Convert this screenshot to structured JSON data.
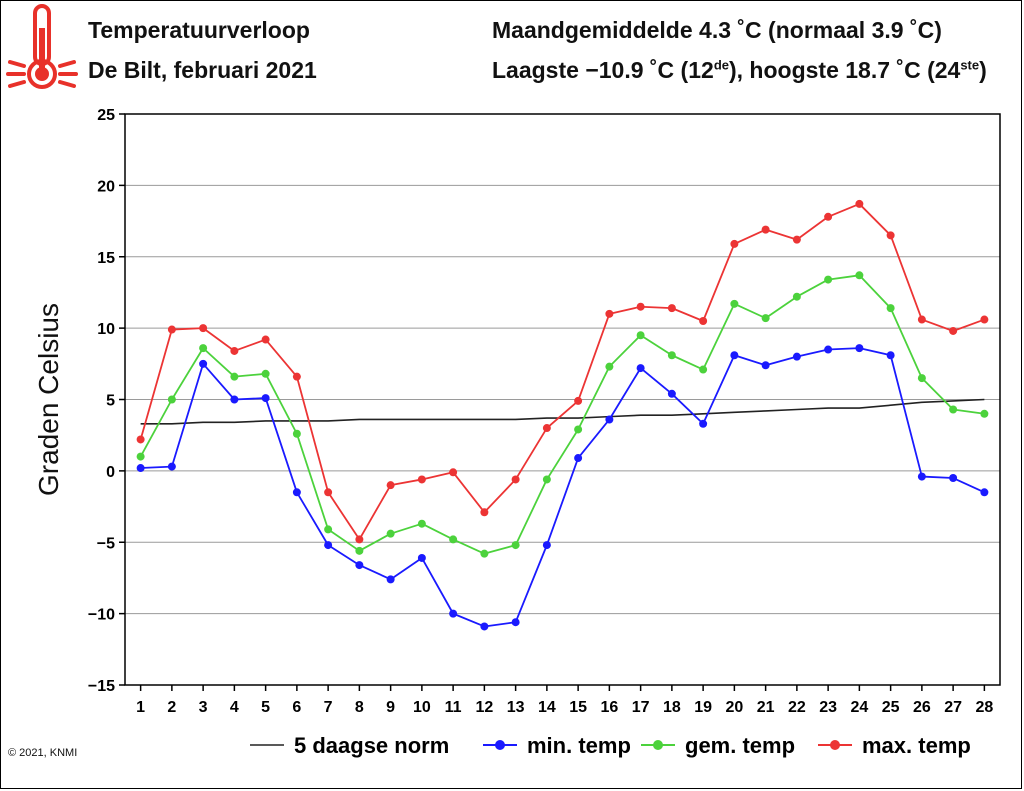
{
  "header": {
    "title": "Temperatuurverloop",
    "subtitle": "De Bilt, februari 2021",
    "stat1_label": "Maandgemiddelde 4.3 ˚C (normaal 3.9 ˚C)",
    "stat2_part1": "Laagste −10.9 ˚C (12",
    "stat2_sup1": "de",
    "stat2_part2": "), hoogste 18.7 ˚C (24",
    "stat2_sup2": "ste",
    "stat2_part3": ")"
  },
  "copyright": "© 2021, KNMI",
  "icons": {
    "logo": "thermometer-icon"
  },
  "colors": {
    "logo": "#e8312a",
    "norm": "#222222",
    "min": "#1a1aff",
    "gem": "#4cd23c",
    "max": "#ec3434"
  },
  "chart_data": {
    "type": "line",
    "title": "Temperatuurverloop",
    "subtitle": "De Bilt, februari 2021",
    "xlabel": "",
    "ylabel": "Graden Celsius",
    "ylim": [
      -15,
      25
    ],
    "yticks": [
      -15,
      -10,
      -5,
      0,
      5,
      10,
      15,
      20,
      25
    ],
    "ytick_labels": [
      "−15",
      "−10",
      "−5",
      "0",
      "5",
      "10",
      "15",
      "20",
      "25"
    ],
    "grid": true,
    "legend_position": "bottom",
    "x": [
      1,
      2,
      3,
      4,
      5,
      6,
      7,
      8,
      9,
      10,
      11,
      12,
      13,
      14,
      15,
      16,
      17,
      18,
      19,
      20,
      21,
      22,
      23,
      24,
      25,
      26,
      27,
      28
    ],
    "series": [
      {
        "name": "5 daagse norm",
        "key": "norm",
        "markers": false,
        "values": [
          3.3,
          3.3,
          3.4,
          3.4,
          3.5,
          3.5,
          3.5,
          3.6,
          3.6,
          3.6,
          3.6,
          3.6,
          3.6,
          3.7,
          3.7,
          3.8,
          3.9,
          3.9,
          4.0,
          4.1,
          4.2,
          4.3,
          4.4,
          4.4,
          4.6,
          4.8,
          4.9,
          5.0
        ]
      },
      {
        "name": "min. temp",
        "key": "min",
        "markers": true,
        "values": [
          0.2,
          0.3,
          7.5,
          5.0,
          5.1,
          -1.5,
          -5.2,
          -6.6,
          -7.6,
          -6.1,
          -10.0,
          -10.9,
          -10.6,
          -5.2,
          0.9,
          3.6,
          7.2,
          5.4,
          3.3,
          8.1,
          7.4,
          8.0,
          8.5,
          8.6,
          8.1,
          -0.4,
          -0.5,
          -1.5
        ]
      },
      {
        "name": "gem. temp",
        "key": "gem",
        "markers": true,
        "values": [
          1.0,
          5.0,
          8.6,
          6.6,
          6.8,
          2.6,
          -4.1,
          -5.6,
          -4.4,
          -3.7,
          -4.8,
          -5.8,
          -5.2,
          -0.6,
          2.9,
          7.3,
          9.5,
          8.1,
          7.1,
          11.7,
          10.7,
          12.2,
          13.4,
          13.7,
          11.4,
          6.5,
          4.3,
          4.0
        ]
      },
      {
        "name": "max. temp",
        "key": "max",
        "markers": true,
        "values": [
          2.2,
          9.9,
          10.0,
          8.4,
          9.2,
          6.6,
          -1.5,
          -4.8,
          -1.0,
          -0.6,
          -0.1,
          -2.9,
          -0.6,
          3.0,
          4.9,
          11.0,
          11.5,
          11.4,
          10.5,
          15.9,
          16.9,
          16.2,
          17.8,
          18.7,
          16.5,
          10.6,
          9.8,
          10.6
        ]
      }
    ]
  }
}
